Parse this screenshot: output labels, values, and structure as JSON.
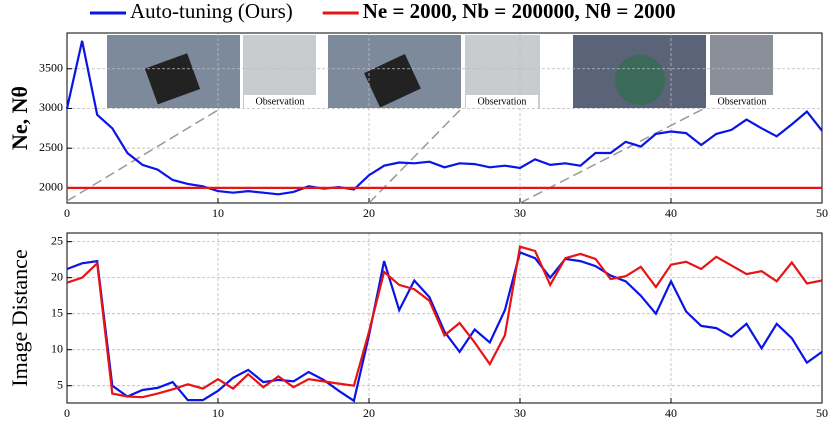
{
  "chart_data": [
    {
      "type": "line",
      "ylabel": "Ne, Nθ",
      "annotations": [
        "Observation",
        "Observation",
        "Observation"
      ],
      "x": [
        0,
        1,
        2,
        3,
        4,
        5,
        6,
        7,
        8,
        9,
        10,
        11,
        12,
        13,
        14,
        15,
        16,
        17,
        18,
        19,
        20,
        21,
        22,
        23,
        24,
        25,
        26,
        27,
        28,
        29,
        30,
        31,
        32,
        33,
        34,
        35,
        36,
        37,
        38,
        39,
        40,
        41,
        42,
        43,
        44,
        45,
        46,
        47,
        48,
        49,
        50
      ],
      "series": [
        {
          "name": "Auto-tuning (Ours)",
          "color": "#0a14e6",
          "values": [
            3000,
            3850,
            2920,
            2750,
            2440,
            2290,
            2230,
            2100,
            2050,
            2020,
            1960,
            1940,
            1960,
            1940,
            1920,
            1950,
            2020,
            1990,
            2010,
            1980,
            2160,
            2280,
            2320,
            2310,
            2330,
            2260,
            2310,
            2300,
            2260,
            2280,
            2250,
            2360,
            2290,
            2310,
            2280,
            2440,
            2440,
            2580,
            2520,
            2680,
            2710,
            2690,
            2540,
            2680,
            2730,
            2860,
            2750,
            2650,
            2800,
            2960,
            2720
          ]
        },
        {
          "name": "Ne = 2000, Nb = 200000, Nθ = 2000",
          "color": "#e61414",
          "values": [
            2000,
            2000,
            2000,
            2000,
            2000,
            2000,
            2000,
            2000,
            2000,
            2000,
            2000,
            2000,
            2000,
            2000,
            2000,
            2000,
            2000,
            2000,
            2000,
            2000,
            2000,
            2000,
            2000,
            2000,
            2000,
            2000,
            2000,
            2000,
            2000,
            2000,
            2000,
            2000,
            2000,
            2000,
            2000,
            2000,
            2000,
            2000,
            2000,
            2000,
            2000,
            2000,
            2000,
            2000,
            2000,
            2000,
            2000,
            2000,
            2000,
            2000,
            2000
          ]
        }
      ],
      "xlim": [
        0,
        50
      ],
      "xticks": [
        0,
        10,
        20,
        30,
        40,
        50
      ],
      "ylim": [
        1810,
        3950
      ],
      "yticks": [
        2000,
        2500,
        3000,
        3500
      ],
      "grid": true
    },
    {
      "type": "line",
      "ylabel": "Image Distance",
      "x": [
        0,
        1,
        2,
        3,
        4,
        5,
        6,
        7,
        8,
        9,
        10,
        11,
        12,
        13,
        14,
        15,
        16,
        17,
        18,
        19,
        20,
        21,
        22,
        23,
        24,
        25,
        26,
        27,
        28,
        29,
        30,
        31,
        32,
        33,
        34,
        35,
        36,
        37,
        38,
        39,
        40,
        41,
        42,
        43,
        44,
        45,
        46,
        47,
        48,
        49,
        50
      ],
      "series": [
        {
          "color": "#0a14e6",
          "values": [
            21.2,
            22,
            22.3,
            5,
            3.5,
            4.4,
            4.7,
            5.5,
            3,
            3,
            4.3,
            6.1,
            7.2,
            5.5,
            5.8,
            5.6,
            6.9,
            5.8,
            4.3,
            2.9,
            12,
            22.3,
            15.5,
            19.6,
            17.3,
            12.5,
            9.7,
            12.8,
            11,
            15.5,
            23.5,
            22.7,
            20,
            22.6,
            22.3,
            21.6,
            20.3,
            19.5,
            17.5,
            15,
            19.5,
            15.3,
            13.3,
            13,
            11.8,
            13.6,
            10.2,
            13.6,
            11.6,
            8.2,
            9.7
          ]
        },
        {
          "color": "#e61414",
          "values": [
            19.3,
            20,
            22,
            3.9,
            3.5,
            3.4,
            3.9,
            4.5,
            5.2,
            4.6,
            5.9,
            4.6,
            6.6,
            4.8,
            6.3,
            4.8,
            5.9,
            5.6,
            5.3,
            5,
            12.5,
            20.8,
            19,
            18.4,
            16.8,
            12,
            13.7,
            11,
            8,
            12,
            24.3,
            23.7,
            19,
            22.7,
            23.3,
            22.6,
            19.8,
            20.2,
            21.5,
            18.7,
            21.8,
            22.2,
            21.2,
            22.9,
            21.7,
            20.5,
            20.9,
            19.5,
            22.1,
            19.2,
            19.6
          ]
        }
      ],
      "xlim": [
        0,
        50
      ],
      "xticks": [
        0,
        10,
        20,
        30,
        40,
        50
      ],
      "ylim": [
        2.6,
        26.2
      ],
      "yticks": [
        5,
        10,
        15,
        20,
        25
      ],
      "grid": true
    }
  ]
}
